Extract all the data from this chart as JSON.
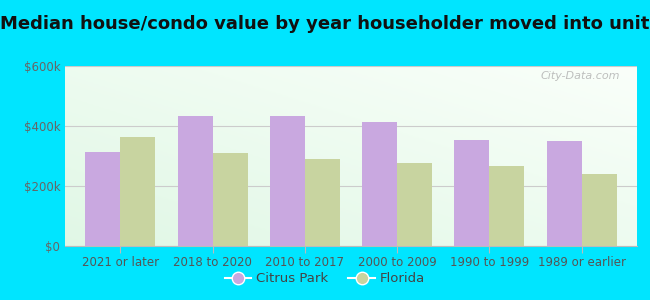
{
  "title": "Median house/condo value by year householder moved into unit",
  "categories": [
    "2021 or later",
    "2018 to 2020",
    "2010 to 2017",
    "2000 to 2009",
    "1990 to 1999",
    "1989 or earlier"
  ],
  "citrus_park": [
    315000,
    435000,
    432000,
    415000,
    355000,
    350000
  ],
  "florida": [
    365000,
    310000,
    290000,
    278000,
    268000,
    240000
  ],
  "citrus_park_color": "#c9a8e0",
  "florida_color": "#c8d4a0",
  "background_color": "#00e5ff",
  "ylim": [
    0,
    600000
  ],
  "yticks": [
    0,
    200000,
    400000,
    600000
  ],
  "ytick_labels": [
    "$0",
    "$200k",
    "$400k",
    "$600k"
  ],
  "watermark": "City-Data.com",
  "legend_citrus": "Citrus Park",
  "legend_florida": "Florida",
  "title_fontsize": 13,
  "tick_fontsize": 8.5,
  "legend_fontsize": 9.5
}
